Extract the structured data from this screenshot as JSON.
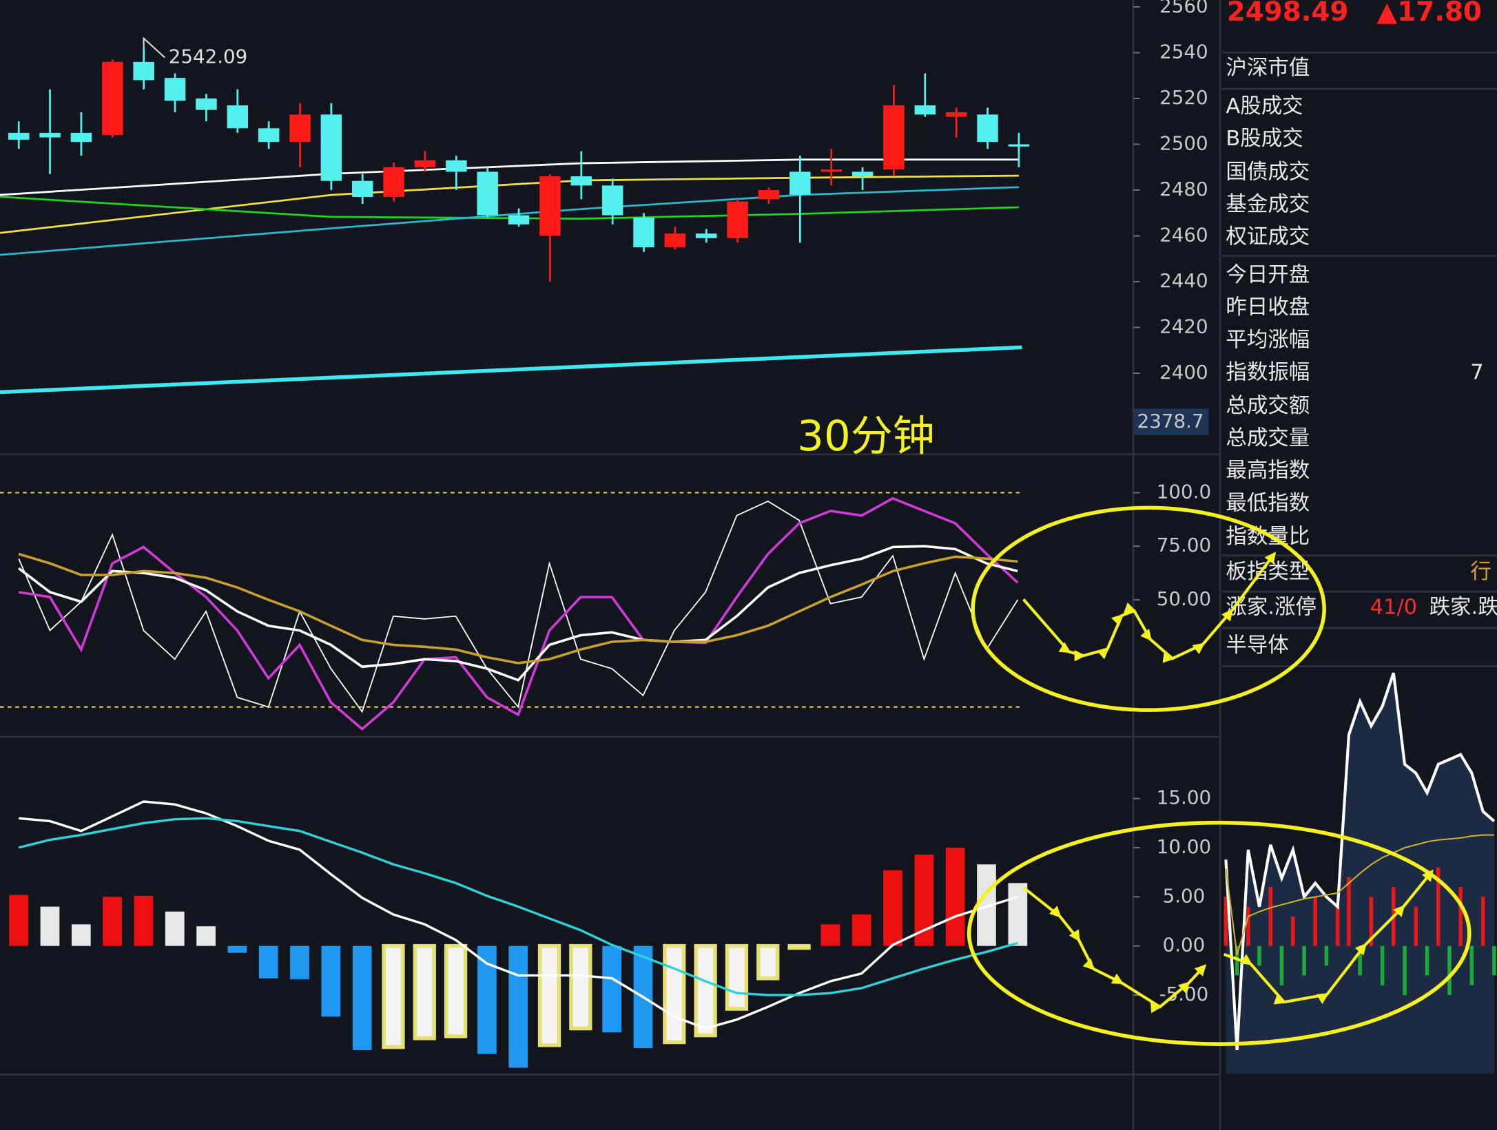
{
  "period": "30分钟",
  "chart_data": [
    {
      "type": "candlestick",
      "xlim": [
        -0.6,
        35.6
      ],
      "ylim": [
        2365,
        2563
      ],
      "yticks": [
        2560,
        2540,
        2520,
        2500,
        2480,
        2460,
        2440,
        2420,
        2400
      ],
      "up_color": "#ff1a1a",
      "down_color": "#54f0f0",
      "open": [
        2505,
        2505,
        2505,
        2504,
        2536,
        2529,
        2520,
        2517,
        2507,
        2501,
        2513,
        2484,
        2477,
        2490,
        2493,
        2488,
        2469,
        2460,
        2486,
        2482,
        2468,
        2455,
        2461,
        2459,
        2476,
        2488,
        2488,
        2488,
        2489,
        2517,
        2512,
        2513,
        2500
      ],
      "high": [
        2510,
        2524,
        2514,
        2537,
        2542.09,
        2531,
        2522,
        2524,
        2510,
        2518,
        2518,
        2487,
        2492,
        2497,
        2495,
        2490,
        2472,
        2487,
        2497,
        2485,
        2470,
        2464,
        2463,
        2476,
        2481,
        2495,
        2498,
        2490,
        2526,
        2531,
        2516,
        2516,
        2505
      ],
      "low": [
        2498,
        2487,
        2495,
        2503,
        2524,
        2514,
        2510,
        2505,
        2498,
        2490,
        2480,
        2474,
        2475,
        2488,
        2480,
        2468,
        2464,
        2440,
        2476,
        2465,
        2453,
        2454,
        2457,
        2457,
        2474,
        2457,
        2482,
        2480,
        2486,
        2512,
        2503,
        2498,
        2490
      ],
      "close": [
        2502,
        2503,
        2501,
        2536,
        2528,
        2519,
        2515,
        2507,
        2501,
        2513,
        2484,
        2477,
        2490,
        2493,
        2488,
        2469,
        2465,
        2486,
        2482,
        2469,
        2455,
        2461,
        2459,
        2475,
        2480,
        2478,
        2489,
        2486,
        2517,
        2513,
        2514,
        2501,
        2499
      ],
      "lines": [
        {
          "color": "#ffffff",
          "x": [
            -0.6,
            10,
            18,
            25,
            32
          ],
          "values": [
            2477.9,
            2487.1,
            2491.7,
            2493.3,
            2493.3
          ]
        },
        {
          "color": "#f0e040",
          "x": [
            -0.6,
            10,
            18,
            25,
            32
          ],
          "values": [
            2461.3,
            2477.9,
            2484.2,
            2485.4,
            2486.3
          ]
        },
        {
          "color": "#22d022",
          "x": [
            -0.6,
            10,
            18,
            25,
            32
          ],
          "values": [
            2477.1,
            2468.3,
            2467.5,
            2469.6,
            2472.5
          ]
        },
        {
          "color": "#2ab8c8",
          "x": [
            -0.6,
            10,
            18,
            25,
            32
          ],
          "values": [
            2451.7,
            2463.3,
            2471.7,
            2477.9,
            2481.3
          ]
        },
        {
          "color": "#3ee8f0",
          "x": [
            -0.6,
            32.1
          ],
          "values": [
            2391.7,
            2411.3
          ]
        }
      ],
      "max_label": 2542.09,
      "axis_marker": 2378.7
    },
    {
      "type": "line",
      "ylim": [
        -13,
        117
      ],
      "yticks": [
        {
          "value": 100,
          "label": "100.0"
        },
        {
          "value": 75,
          "label": "75.00"
        },
        {
          "value": 50,
          "label": "50.00"
        }
      ],
      "hlines": [
        100,
        0
      ],
      "hline_color": "#e6d23a",
      "series": [
        {
          "color": "#ffffff",
          "values": [
            69.2,
            35.7,
            49.1,
            80.4,
            35.7,
            22.3,
            44.6,
            4.5,
            0,
            44.6,
            17.9,
            -2.2,
            42.4,
            41.1,
            42.4,
            17.9,
            0,
            67,
            22.3,
            17.9,
            5.4,
            35.7,
            53.6,
            89.3,
            96,
            87.1,
            48.2,
            51.3,
            70.5,
            22.3,
            62.5,
            26.8,
            50
          ]
        },
        {
          "color": "#d23ad8",
          "values": [
            53.6,
            51.3,
            26.8,
            67,
            74.6,
            62.5,
            51.3,
            35.7,
            13.4,
            29,
            2.2,
            -10.3,
            2.2,
            22.3,
            23.2,
            4.5,
            -3.6,
            35.7,
            51.3,
            51.3,
            31.3,
            30.4,
            29.9,
            51.3,
            71.4,
            85.7,
            91.5,
            89.3,
            97.3,
            91.5,
            85.7,
            71.4,
            58
          ]
        },
        {
          "color": "#ffffff",
          "values": [
            64.7,
            53.6,
            49.1,
            63.4,
            62.5,
            60.3,
            54.5,
            44.6,
            37.9,
            35.7,
            29,
            18.8,
            20.1,
            22.3,
            21.4,
            17.9,
            12.5,
            29,
            33.5,
            34.8,
            31.3,
            30.4,
            31.3,
            42.4,
            55.8,
            62.5,
            66.1,
            69.2,
            74.6,
            75,
            73.7,
            67,
            63.4
          ]
        },
        {
          "color": "#c8a030",
          "values": [
            71.4,
            67,
            61.6,
            61.6,
            63.4,
            62.5,
            60.3,
            55.8,
            50,
            44.6,
            37.9,
            31.3,
            29,
            28.1,
            26.8,
            23.2,
            20.5,
            22.3,
            26.8,
            30.4,
            31.3,
            30.4,
            30.4,
            33.5,
            37.9,
            44.6,
            51.3,
            57.1,
            63.4,
            67,
            70.1,
            69.2,
            67.9
          ]
        }
      ]
    },
    {
      "type": "macd",
      "ylim": [
        -13,
        21
      ],
      "yticks": [
        {
          "value": 15,
          "label": "15.00"
        },
        {
          "value": 10,
          "label": "10.00"
        },
        {
          "value": 5,
          "label": "5.00"
        },
        {
          "value": 0,
          "label": "0.00"
        },
        {
          "value": -5,
          "label": "-5.00"
        }
      ],
      "bar_colors": {
        "rise_pos": "#ee1010",
        "fall_pos": "#e8e8e8",
        "fall_neg": "#1e98f0",
        "rise_neg": "#e6e070"
      },
      "bars": [
        5.2,
        4.0,
        2.2,
        5.0,
        5.1,
        3.5,
        2.0,
        -0.7,
        -3.3,
        -3.4,
        -7.2,
        -10.6,
        -10.3,
        -9.4,
        -9.2,
        -11.0,
        -12.4,
        -10.1,
        -8.4,
        -8.8,
        -10.4,
        -9.8,
        -9.1,
        -6.4,
        -3.3,
        -0.2,
        2.2,
        3.2,
        7.7,
        9.3,
        10.0,
        8.3,
        6.4
      ],
      "series": [
        {
          "color": "#ffffff",
          "values": [
            13.0,
            12.7,
            11.7,
            13.2,
            14.7,
            14.4,
            13.5,
            12.2,
            10.7,
            9.8,
            7.3,
            4.9,
            3.2,
            2.2,
            0.6,
            -1.8,
            -3.0,
            -3.0,
            -3.0,
            -3.3,
            -5.2,
            -7.2,
            -8.4,
            -7.5,
            -6.2,
            -4.8,
            -3.6,
            -2.8,
            0.1,
            1.6,
            3.0,
            4.0,
            5.0
          ]
        },
        {
          "color": "#30d0d8",
          "values": [
            10.0,
            10.8,
            11.3,
            11.9,
            12.5,
            12.9,
            13.0,
            12.7,
            12.2,
            11.7,
            10.6,
            9.5,
            8.3,
            7.4,
            6.4,
            5.1,
            4.0,
            2.8,
            1.6,
            0.1,
            -1.1,
            -2.3,
            -3.6,
            -4.8,
            -5.0,
            -5.0,
            -4.8,
            -4.3,
            -3.3,
            -2.3,
            -1.4,
            -0.6,
            0.3
          ]
        }
      ]
    },
    {
      "type": "intraday",
      "ylim": [
        -13,
        28.3
      ],
      "area_color": "#1c2a44",
      "series": [
        {
          "color": "#ffffff",
          "values": [
            8.8,
            -10.6,
            9.8,
            4.0,
            10.3,
            6.9,
            9.8,
            5.0,
            6.4,
            5.0,
            4.0,
            21.5,
            24.9,
            22.4,
            24.4,
            27.8,
            18.5,
            17.6,
            15.6,
            18.5,
            19.0,
            19.5,
            17.6,
            13.7,
            12.7
          ]
        },
        {
          "color": "#c8b030",
          "values": [
            7.9,
            -0.9,
            3.0,
            3.5,
            3.9,
            4.2,
            4.5,
            4.8,
            5.0,
            5.2,
            5.4,
            6.4,
            7.4,
            8.3,
            9.0,
            9.5,
            10.0,
            10.3,
            10.6,
            10.8,
            10.9,
            11.0,
            11.2,
            11.3,
            11.3
          ]
        }
      ],
      "volume": [
        5,
        -3,
        4,
        -2,
        6,
        -4,
        3,
        -3,
        5,
        -2,
        4,
        7,
        -3,
        5,
        -4,
        6,
        -5,
        4,
        -3,
        8,
        -5,
        6,
        -4,
        5,
        -3
      ],
      "volume_colors": {
        "up": "#e81818",
        "down": "#1ea83a"
      }
    }
  ],
  "side_panel": {
    "price": "2498.49",
    "change": "▲17.80",
    "rows": [
      {
        "label": "沪深市值"
      },
      {
        "label": "A股成交"
      },
      {
        "label": "B股成交"
      },
      {
        "label": "国债成交"
      },
      {
        "label": "基金成交"
      },
      {
        "label": "权证成交"
      },
      {
        "label": "今日开盘"
      },
      {
        "label": "昨日收盘"
      },
      {
        "label": "平均涨幅"
      },
      {
        "label": "指数振幅",
        "value": "7"
      },
      {
        "label": "总成交额"
      },
      {
        "label": "总成交量"
      },
      {
        "label": "最高指数"
      },
      {
        "label": "最低指数"
      },
      {
        "label": "指数量比"
      },
      {
        "label": "板指类型",
        "value": "行"
      },
      {
        "label": "涨家.涨停",
        "value": "41/0",
        "extra": "跌家.跌"
      },
      {
        "label": "半导体"
      }
    ]
  }
}
